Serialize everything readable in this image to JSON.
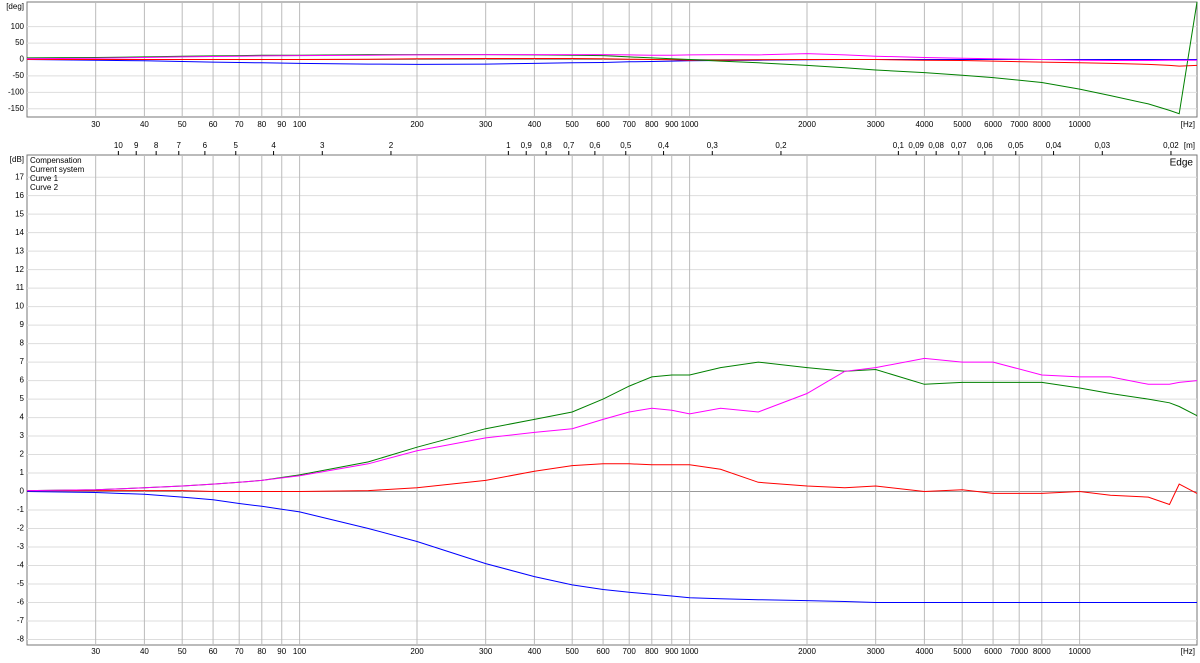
{
  "chart_data": [
    {
      "type": "line",
      "y_label": "[deg]",
      "x_unit": "[Hz]",
      "log_x": true,
      "grid": true,
      "x": [
        20,
        30,
        40,
        50,
        60,
        70,
        80,
        100,
        150,
        200,
        300,
        400,
        500,
        600,
        700,
        800,
        900,
        1000,
        1200,
        1500,
        2000,
        2500,
        3000,
        4000,
        5000,
        6000,
        8000,
        10000,
        12000,
        15000,
        17000,
        18000,
        20000
      ],
      "xlim": [
        20,
        20000
      ],
      "ylim": [
        -175,
        175
      ],
      "xticks": [
        30,
        40,
        50,
        60,
        70,
        80,
        90,
        100,
        200,
        300,
        400,
        500,
        600,
        700,
        800,
        900,
        1000,
        2000,
        3000,
        4000,
        5000,
        6000,
        7000,
        8000,
        10000
      ],
      "yticks": [
        -150,
        -100,
        -50,
        0,
        50,
        100
      ],
      "series": [
        {
          "name": "Compensation",
          "color": "#0000ff",
          "values": [
            0,
            -2,
            -4,
            -6,
            -8,
            -9,
            -10,
            -12,
            -14,
            -15,
            -14,
            -12,
            -10,
            -9,
            -7,
            -6,
            -5,
            -4,
            -3,
            -2,
            -1,
            0,
            0,
            0,
            0,
            0,
            0,
            0,
            0,
            0,
            0,
            0,
            0
          ]
        },
        {
          "name": "Current system",
          "color": "#ff0000",
          "values": [
            0,
            0,
            0,
            0,
            0,
            0,
            0,
            0,
            1,
            2,
            3,
            3,
            3,
            2,
            1,
            0,
            -1,
            -2,
            -2,
            -1,
            0,
            0,
            0,
            -2,
            -3,
            -5,
            -8,
            -10,
            -12,
            -15,
            -18,
            -20,
            -18
          ]
        },
        {
          "name": "Curve 1",
          "color": "#008000",
          "values": [
            5,
            6,
            8,
            10,
            11,
            12,
            13,
            13,
            15,
            15,
            15,
            14,
            13,
            12,
            8,
            5,
            2,
            0,
            -5,
            -10,
            -18,
            -25,
            -32,
            -40,
            -48,
            -55,
            -70,
            -90,
            -110,
            -135,
            -155,
            -165,
            175
          ]
        },
        {
          "name": "Curve 2",
          "color": "#ff00ff",
          "values": [
            2,
            4,
            6,
            8,
            9,
            10,
            11,
            12,
            13,
            14,
            15,
            15,
            15,
            15,
            14,
            13,
            13,
            14,
            15,
            14,
            18,
            14,
            10,
            6,
            4,
            2,
            0,
            -2,
            -3,
            -3,
            -2,
            -2,
            -2
          ]
        }
      ]
    },
    {
      "type": "line",
      "y_label": "[dB]",
      "x_unit": "[Hz]",
      "log_x": true,
      "grid": true,
      "legend": "top-left",
      "annotation": "Edge",
      "x": [
        20,
        30,
        40,
        50,
        60,
        70,
        80,
        100,
        150,
        200,
        300,
        400,
        500,
        600,
        700,
        800,
        900,
        1000,
        1200,
        1500,
        2000,
        2500,
        3000,
        4000,
        5000,
        6000,
        8000,
        10000,
        12000,
        15000,
        17000,
        18000,
        20000
      ],
      "xlim": [
        20,
        20000
      ],
      "ylim": [
        -8.3,
        18.2
      ],
      "xticks": [
        30,
        40,
        50,
        60,
        70,
        80,
        90,
        100,
        200,
        300,
        400,
        500,
        600,
        700,
        800,
        900,
        1000,
        2000,
        3000,
        4000,
        5000,
        6000,
        7000,
        8000,
        10000
      ],
      "yticks": [
        -8,
        -7,
        -6,
        -5,
        -4,
        -3,
        -2,
        -1,
        0,
        1,
        2,
        3,
        4,
        5,
        6,
        7,
        8,
        9,
        10,
        11,
        12,
        13,
        14,
        15,
        16,
        17
      ],
      "top_axis": {
        "unit": "[m]",
        "ticks": [
          10,
          9,
          8,
          7,
          6,
          5,
          4,
          3,
          2,
          1,
          {
            "value": 0.9,
            "label": "0,9"
          },
          {
            "value": 0.8,
            "label": "0,8"
          },
          {
            "value": 0.7,
            "label": "0,7"
          },
          {
            "value": 0.6,
            "label": "0,6"
          },
          {
            "value": 0.5,
            "label": "0,5"
          },
          {
            "value": 0.4,
            "label": "0,4"
          },
          {
            "value": 0.3,
            "label": "0,3"
          },
          {
            "value": 0.2,
            "label": "0,2"
          },
          {
            "value": 0.1,
            "label": "0,1"
          },
          {
            "value": 0.09,
            "label": "0,09"
          },
          {
            "value": 0.08,
            "label": "0,08"
          },
          {
            "value": 0.07,
            "label": "0,07"
          },
          {
            "value": 0.06,
            "label": "0,06"
          },
          {
            "value": 0.05,
            "label": "0,05"
          },
          {
            "value": 0.04,
            "label": "0,04"
          },
          {
            "value": 0.03,
            "label": "0,03"
          },
          {
            "value": 0.02,
            "label": "0,02"
          }
        ]
      },
      "series": [
        {
          "name": "Compensation",
          "color": "#0000ff",
          "values": [
            0,
            -0.05,
            -0.15,
            -0.3,
            -0.45,
            -0.65,
            -0.8,
            -1.1,
            -2,
            -2.7,
            -3.9,
            -4.6,
            -5.05,
            -5.3,
            -5.45,
            -5.55,
            -5.65,
            -5.75,
            -5.8,
            -5.85,
            -5.9,
            -5.95,
            -6,
            -6,
            -6,
            -6,
            -6,
            -6,
            -6,
            -6,
            -6,
            -6,
            -6
          ]
        },
        {
          "name": "Current system",
          "color": "#ff0000",
          "values": [
            0.05,
            0.05,
            0.05,
            0.05,
            0,
            0,
            0,
            0,
            0.05,
            0.2,
            0.6,
            1.1,
            1.4,
            1.5,
            1.5,
            1.45,
            1.45,
            1.45,
            1.2,
            0.5,
            0.3,
            0.2,
            0.3,
            0,
            0.1,
            -0.1,
            -0.1,
            0,
            -0.2,
            -0.3,
            -0.7,
            0.4,
            -0.1
          ]
        },
        {
          "name": "Curve 1",
          "color": "#008000",
          "values": [
            0.05,
            0.1,
            0.2,
            0.3,
            0.4,
            0.5,
            0.6,
            0.9,
            1.6,
            2.4,
            3.4,
            3.9,
            4.3,
            5,
            5.7,
            6.2,
            6.3,
            6.3,
            6.7,
            7,
            6.7,
            6.5,
            6.6,
            5.8,
            5.9,
            5.9,
            5.9,
            5.6,
            5.3,
            5,
            4.8,
            4.6,
            4.1
          ]
        },
        {
          "name": "Curve 2",
          "color": "#ff00ff",
          "values": [
            0.05,
            0.1,
            0.2,
            0.3,
            0.4,
            0.5,
            0.6,
            0.85,
            1.5,
            2.2,
            2.9,
            3.2,
            3.4,
            3.9,
            4.3,
            4.5,
            4.4,
            4.2,
            4.5,
            4.3,
            5.3,
            6.5,
            6.7,
            7.2,
            7,
            7,
            6.3,
            6.2,
            6.2,
            5.8,
            5.8,
            5.9,
            6
          ]
        }
      ]
    }
  ]
}
